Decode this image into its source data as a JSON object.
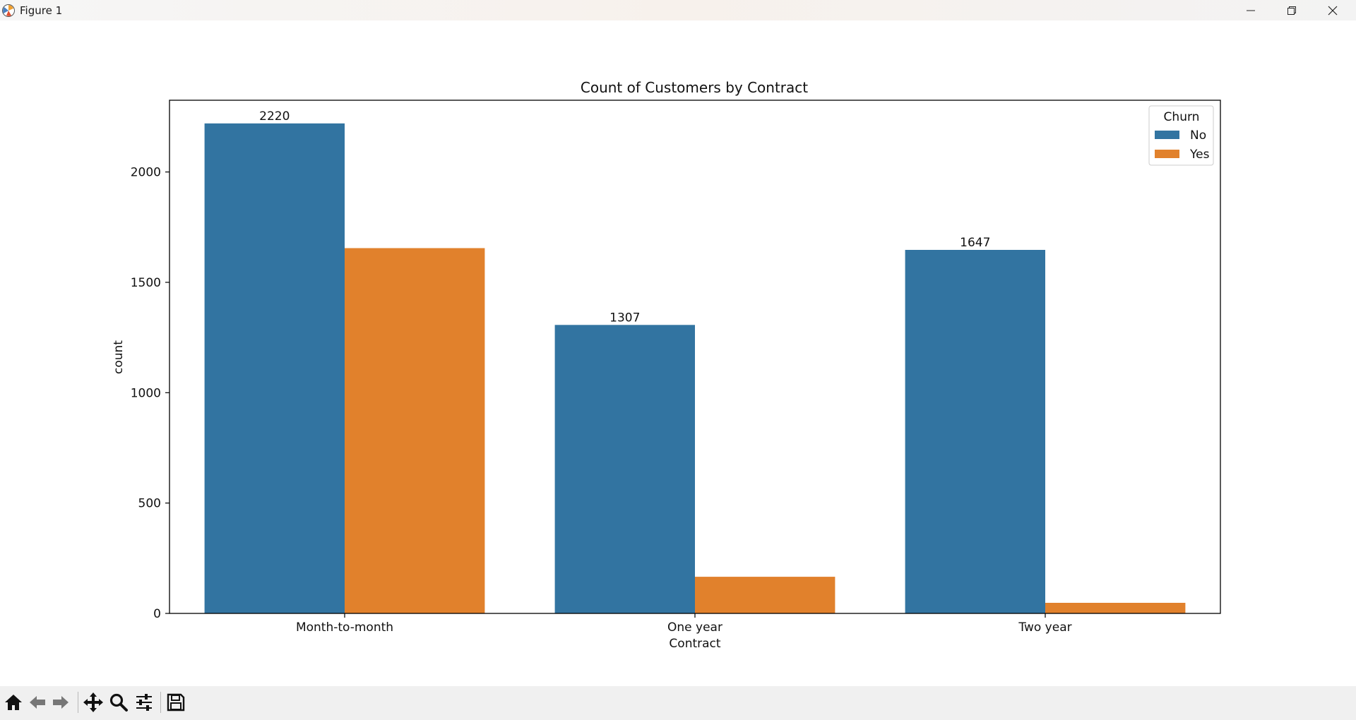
{
  "window": {
    "title": "Figure 1"
  },
  "toolbar": {
    "buttons": [
      {
        "name": "home-icon",
        "tip": "Home"
      },
      {
        "name": "back-arrow-icon",
        "tip": "Back"
      },
      {
        "name": "forward-arrow-icon",
        "tip": "Forward"
      },
      {
        "name": "pan-move-icon",
        "tip": "Pan"
      },
      {
        "name": "zoom-magnifier-icon",
        "tip": "Zoom"
      },
      {
        "name": "configure-subplots-icon",
        "tip": "Subplots"
      },
      {
        "name": "save-floppy-icon",
        "tip": "Save"
      }
    ]
  },
  "chart_data": {
    "type": "bar",
    "title": "Count of Customers by Contract",
    "xlabel": "Contract",
    "ylabel": "count",
    "categories": [
      "Month-to-month",
      "One year",
      "Two year"
    ],
    "series": [
      {
        "name": "No",
        "color": "#3274a1",
        "values": [
          2220,
          1307,
          1647
        ],
        "labels": [
          "2220",
          "1307",
          "1647"
        ]
      },
      {
        "name": "Yes",
        "color": "#e1812c",
        "values": [
          1655,
          166,
          48
        ],
        "labels": [
          "",
          "",
          ""
        ]
      }
    ],
    "ylim": [
      0,
      2325
    ],
    "yticks": [
      0,
      500,
      1000,
      1500,
      2000
    ],
    "grid": false,
    "legend": {
      "title": "Churn",
      "position": "top-right"
    }
  }
}
